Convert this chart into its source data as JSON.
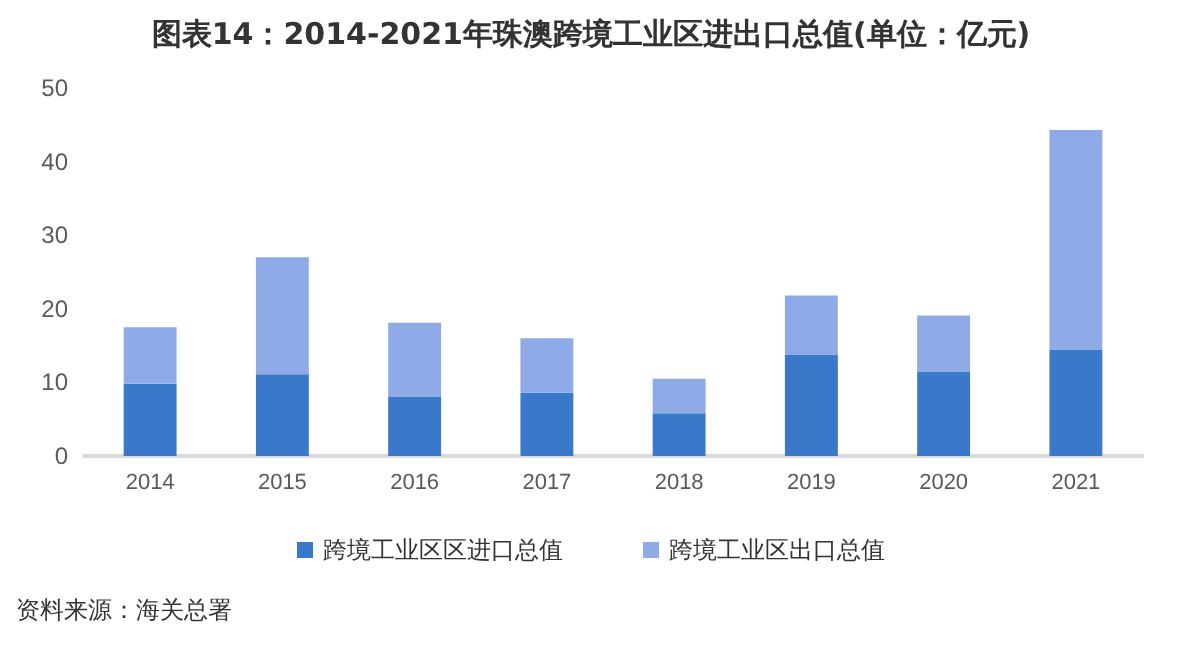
{
  "chart_data": {
    "type": "bar",
    "title": "图表14：2014-2021年珠澳跨境工业区进出口总值(单位：亿元)",
    "categories": [
      "2014",
      "2015",
      "2016",
      "2017",
      "2018",
      "2019",
      "2020",
      "2021"
    ],
    "series": [
      {
        "name": "跨境工业区区进口总值",
        "color": "#3a78c9",
        "values": [
          9.8,
          11.1,
          8.0,
          8.6,
          5.8,
          13.8,
          11.4,
          14.4
        ]
      },
      {
        "name": "跨境工业区出口总值",
        "color": "#8eabe8",
        "values": [
          7.7,
          15.9,
          10.1,
          7.4,
          4.7,
          8.0,
          7.7,
          29.9
        ]
      }
    ],
    "stacked": true,
    "ylim": [
      0,
      50
    ],
    "yticks": [
      0,
      10,
      20,
      30,
      40,
      50
    ],
    "grid": false,
    "legend": "bottom",
    "annotations": [
      "资料来源：海关总署"
    ]
  }
}
